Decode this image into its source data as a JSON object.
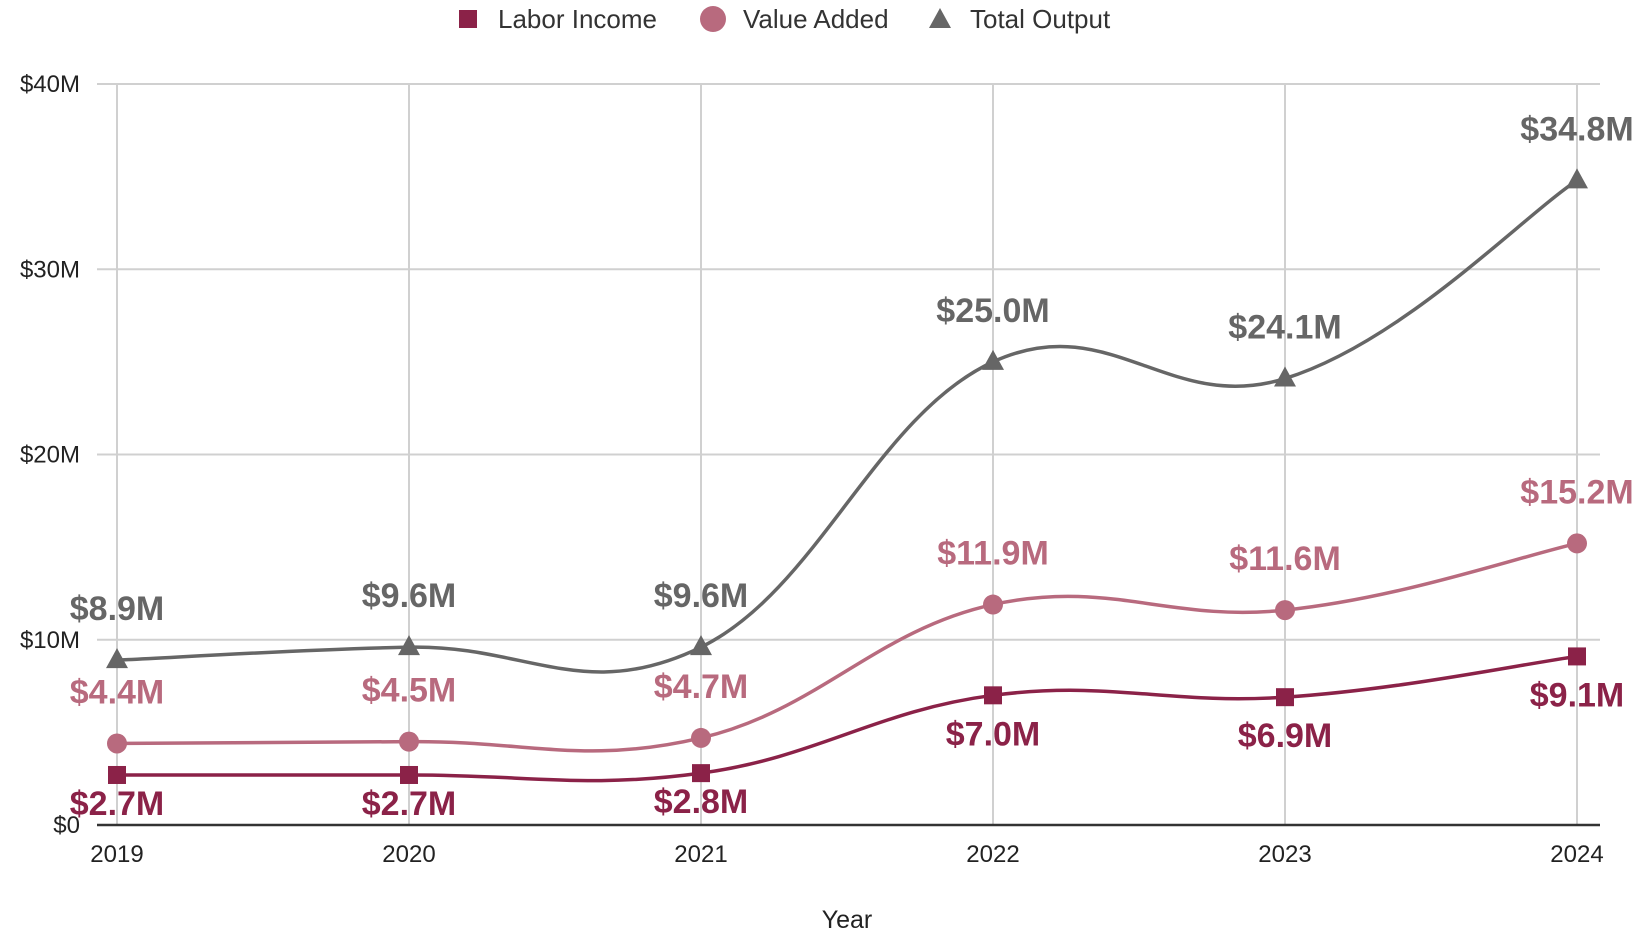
{
  "chart_data": {
    "type": "line",
    "categories": [
      "2019",
      "2020",
      "2021",
      "2022",
      "2023",
      "2024"
    ],
    "xlabel": "Year",
    "ylabel": "",
    "ylim": [
      0,
      40
    ],
    "y_ticks": [
      "$0",
      "$10M",
      "$20M",
      "$30M",
      "$40M"
    ],
    "grid": true,
    "smooth": true,
    "legend_position": "top",
    "series": [
      {
        "name": "Labor Income",
        "marker": "square",
        "color": "#8b2248",
        "values": [
          2.7,
          2.7,
          2.8,
          7.0,
          6.9,
          9.1
        ],
        "labels": [
          "$2.7M",
          "$2.7M",
          "$2.8M",
          "$7.0M",
          "$6.9M",
          "$9.1M"
        ]
      },
      {
        "name": "Value Added",
        "marker": "circle",
        "color": "#b86a7e",
        "values": [
          4.4,
          4.5,
          4.7,
          11.9,
          11.6,
          15.2
        ],
        "labels": [
          "$4.4M",
          "$4.5M",
          "$4.7M",
          "$11.9M",
          "$11.6M",
          "$15.2M"
        ]
      },
      {
        "name": "Total Output",
        "marker": "triangle",
        "color": "#666666",
        "values": [
          8.9,
          9.6,
          9.6,
          25.0,
          24.1,
          34.8
        ],
        "labels": [
          "$8.9M",
          "$9.6M",
          "$9.6M",
          "$25.0M",
          "$24.1M",
          "$34.8M"
        ]
      }
    ]
  }
}
